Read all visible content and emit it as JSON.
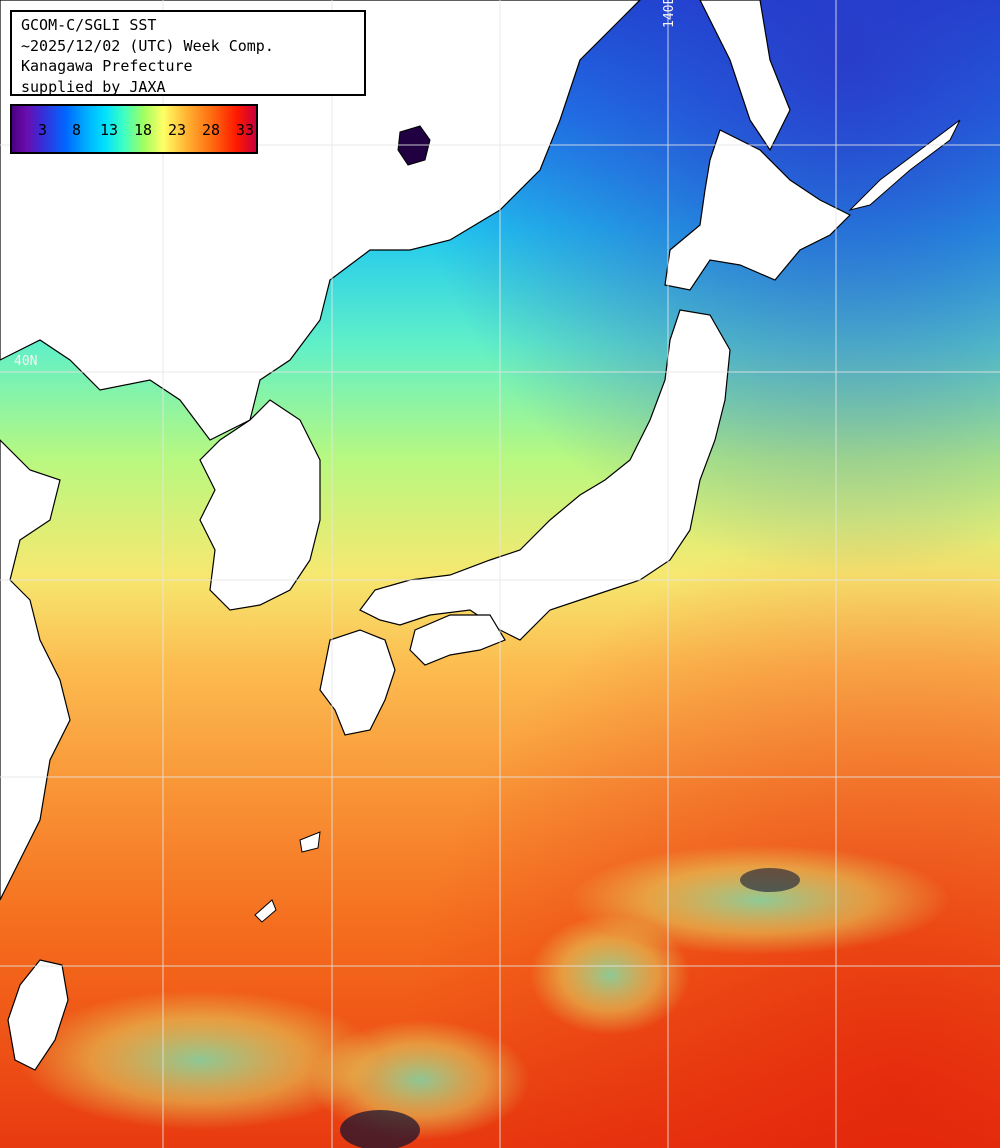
{
  "title_lines": [
    "GCOM-C/SGLI SST",
    "~2025/12/02 (UTC) Week Comp.",
    "Kanagawa Prefecture",
    "supplied by JAXA"
  ],
  "colorbar": {
    "ticks": [
      "3",
      "8",
      "13",
      "18",
      "23",
      "28",
      "33"
    ]
  },
  "grid_labels": {
    "lon": "140E",
    "lat": "40N"
  },
  "colors": {
    "land": "#ffffff",
    "grid": "#e6e6e6",
    "coast": "#000000"
  }
}
